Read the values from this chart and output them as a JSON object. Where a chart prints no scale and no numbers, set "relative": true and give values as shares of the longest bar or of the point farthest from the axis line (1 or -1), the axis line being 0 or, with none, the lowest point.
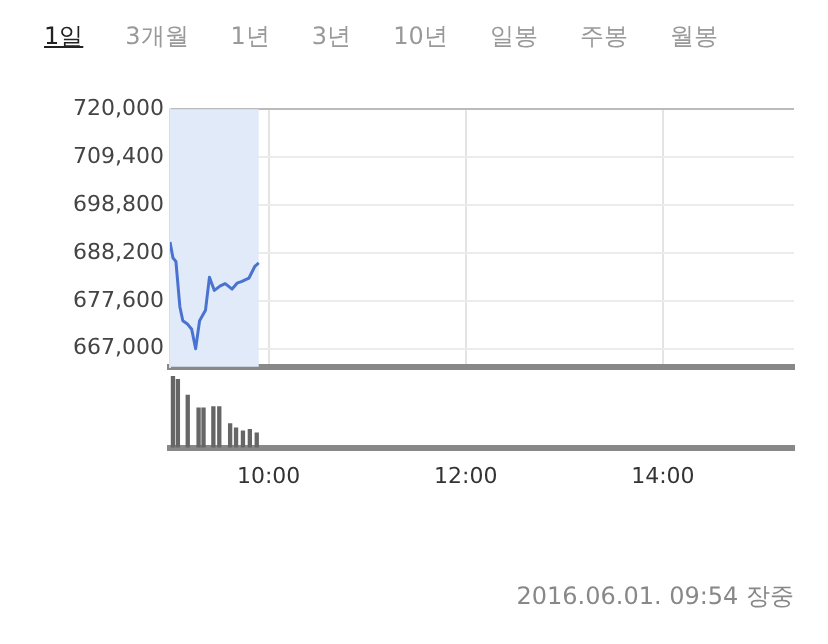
{
  "chart_data": [
    {
      "type": "line",
      "annotations": [
        "1일",
        "3개월",
        "1년",
        "3년",
        "10년",
        "일봉",
        "주봉",
        "월봉"
      ],
      "x": [
        9.0,
        9.03,
        9.06,
        9.1,
        9.13,
        9.18,
        9.22,
        9.26,
        9.3,
        9.36,
        9.4,
        9.45,
        9.51,
        9.56,
        9.63,
        9.68,
        9.73,
        9.8,
        9.86,
        9.9
      ],
      "series": [
        {
          "color": "#4a72d0",
          "values": [
            690600,
            687100,
            686300,
            676300,
            673200,
            672400,
            671300,
            667000,
            673200,
            675500,
            682800,
            679900,
            680900,
            681400,
            680200,
            681500,
            681900,
            682600,
            685200,
            686000
          ]
        }
      ],
      "xlim": [
        9,
        15.33
      ],
      "xticks": [
        {
          "value": 10,
          "label": null
        },
        {
          "value": 12,
          "label": null
        },
        {
          "value": 14,
          "label": null
        }
      ],
      "ylim": [
        663000,
        720000
      ],
      "yticks": [
        {
          "value": 667000,
          "label": "667,000"
        },
        {
          "value": 677600,
          "label": "677,600"
        },
        {
          "value": 688200,
          "label": "688,200"
        },
        {
          "value": 698800,
          "label": "698,800"
        },
        {
          "value": 709400,
          "label": "709,400"
        },
        {
          "value": 720000,
          "label": "720,000"
        }
      ],
      "bands": [
        {
          "axis": "x",
          "from": 9,
          "to": 9.9,
          "color": "#e0eaf8"
        }
      ],
      "grid": true,
      "tick_labels": "y"
    },
    {
      "type": "bar",
      "relative": true,
      "annotations": [
        "2016.06.01. 09:54 장중"
      ],
      "x": [
        9.03,
        9.08,
        9.18,
        9.29,
        9.34,
        9.44,
        9.5,
        9.61,
        9.67,
        9.74,
        9.81,
        9.88
      ],
      "series": [
        {
          "color": "#666666",
          "values": [
            1.0,
            0.95,
            0.73,
            0.55,
            0.55,
            0.57,
            0.57,
            0.33,
            0.27,
            0.23,
            0.25,
            0.2
          ]
        }
      ],
      "xlim": [
        9,
        15.33
      ],
      "xticks": [
        {
          "value": 10,
          "label": "10:00"
        },
        {
          "value": 12,
          "label": "12:00"
        },
        {
          "value": 14,
          "label": "14:00"
        }
      ],
      "tick_labels": "x"
    }
  ]
}
